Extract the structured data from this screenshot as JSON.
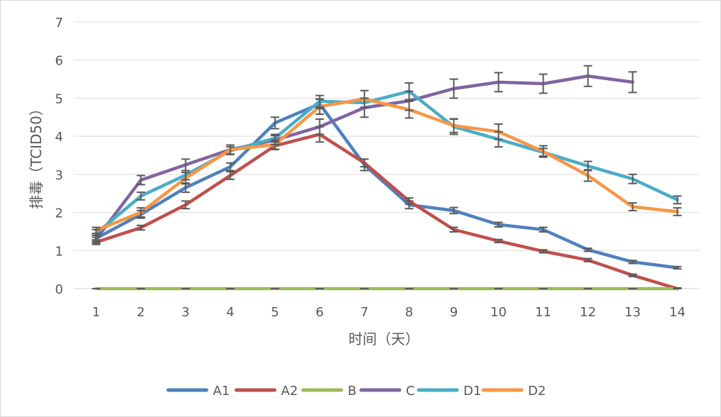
{
  "chart_data": {
    "type": "line",
    "title": "",
    "xlabel": "时间（天）",
    "ylabel": "排毒（TCID50）",
    "categories": [
      "1",
      "2",
      "3",
      "4",
      "5",
      "6",
      "7",
      "8",
      "9",
      "10",
      "11",
      "12",
      "13",
      "14"
    ],
    "ylim": [
      0,
      7
    ],
    "yticks": [
      0,
      1,
      2,
      3,
      4,
      5,
      6,
      7
    ],
    "grid": true,
    "legend": "bottom",
    "error_bars": true,
    "series": [
      {
        "name": "A1",
        "color": "#4F81BD",
        "values": [
          1.32,
          1.95,
          2.65,
          3.2,
          4.35,
          4.85,
          3.25,
          2.2,
          2.05,
          1.68,
          1.55,
          1.02,
          0.7,
          0.55
        ],
        "errors": [
          0.08,
          0.1,
          0.12,
          0.1,
          0.15,
          0.12,
          0.15,
          0.1,
          0.08,
          0.06,
          0.06,
          0.04,
          0.04,
          0.03
        ]
      },
      {
        "name": "A2",
        "color": "#C0504D",
        "values": [
          1.22,
          1.6,
          2.2,
          2.97,
          3.75,
          4.05,
          3.3,
          2.3,
          1.55,
          1.25,
          0.98,
          0.75,
          0.35,
          0.0
        ],
        "errors": [
          0.06,
          0.06,
          0.1,
          0.1,
          0.1,
          0.2,
          0.1,
          0.08,
          0.06,
          0.04,
          0.04,
          0.04,
          0.03,
          0.02
        ]
      },
      {
        "name": "B",
        "color": "#9BBB59",
        "values": [
          0,
          0,
          0,
          0,
          0,
          0,
          0,
          0,
          0,
          0,
          0,
          0,
          0,
          0
        ],
        "errors": [
          0,
          0,
          0,
          0,
          0,
          0,
          0,
          0,
          0,
          0,
          0,
          0,
          0,
          0
        ]
      },
      {
        "name": "C",
        "color": "#8064A2",
        "values": [
          1.3,
          2.85,
          3.25,
          3.65,
          3.9,
          4.25,
          4.75,
          4.93,
          5.25,
          5.42,
          5.38,
          5.58,
          5.42,
          null
        ],
        "errors": [
          0.1,
          0.12,
          0.15,
          0.12,
          0.12,
          0.2,
          0.25,
          0.25,
          0.25,
          0.25,
          0.25,
          0.27,
          0.27,
          0
        ]
      },
      {
        "name": "D1",
        "color": "#4BACC6",
        "values": [
          1.45,
          2.43,
          2.98,
          3.62,
          3.95,
          4.92,
          4.88,
          5.18,
          4.25,
          3.92,
          3.58,
          3.22,
          2.88,
          2.33
        ],
        "errors": [
          0.1,
          0.1,
          0.12,
          0.1,
          0.1,
          0.15,
          0.12,
          0.22,
          0.2,
          0.2,
          0.1,
          0.12,
          0.12,
          0.1
        ]
      },
      {
        "name": "D2",
        "color": "#F79646",
        "values": [
          1.53,
          2.0,
          2.9,
          3.65,
          3.78,
          4.78,
          4.98,
          4.7,
          4.28,
          4.12,
          3.6,
          2.97,
          2.15,
          2.02
        ],
        "errors": [
          0.08,
          0.12,
          0.15,
          0.12,
          0.12,
          0.2,
          0.22,
          0.22,
          0.18,
          0.2,
          0.15,
          0.15,
          0.1,
          0.1
        ]
      }
    ]
  }
}
